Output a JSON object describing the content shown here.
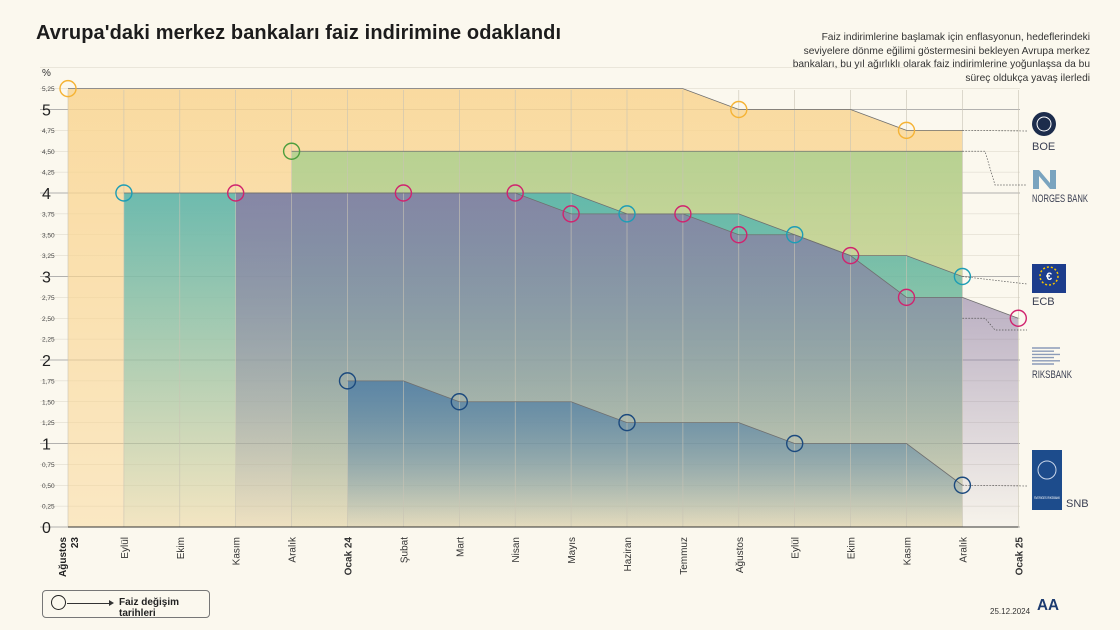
{
  "title": "Avrupa'daki merkez bankaları faiz indirimine odaklandı",
  "subtitle": "Faiz indirimlerine başlamak için enflasyonun, hedeflerindeki seviyelere dönme eğilimi göstermesini bekleyen Avrupa merkez bankaları, bu yıl ağırlıklı olarak faiz indirimlerine yoğunlaşsa da bu süreç oldukça yavaş ilerledi",
  "legend_label": "Faiz değişim tarihleri",
  "date": "25.12.2024",
  "logos": {
    "boe": "BOE",
    "norges": "NORGES BANK",
    "ecb": "ECB",
    "riksbank": "RIKSBANK",
    "snb": "SNB",
    "snb_emblem": "SVERIGES RIKSBANK",
    "aa": "AA"
  },
  "chart_data": {
    "type": "area",
    "ylabel": "%",
    "ylim": [
      0,
      5.5
    ],
    "ytick_major": [
      "0",
      "1",
      "2",
      "3",
      "4",
      "5"
    ],
    "ytick_minor": [
      "0,25",
      "0,50",
      "0,75",
      "1,25",
      "1,50",
      "1,75",
      "2,25",
      "2,50",
      "2,75",
      "3,25",
      "3,50",
      "3,75",
      "4,25",
      "4,50",
      "4,75",
      "5,25"
    ],
    "categories": [
      "Ağustos 23",
      "Eylül",
      "Ekim",
      "Kasım",
      "Aralık",
      "Ocak 24",
      "Şubat",
      "Mart",
      "Nisan",
      "Mayıs",
      "Haziran",
      "Temmuz",
      "Ağustos",
      "Eylül",
      "Ekim",
      "Kasım",
      "Aralık",
      "Ocak 25"
    ],
    "bold_categories": [
      "Ağustos 23",
      "Ocak 24",
      "Ocak 25"
    ],
    "grid": true,
    "series": [
      {
        "name": "BOE",
        "color": "#f5b335",
        "fill": "#f9d592",
        "steps": [
          [
            0,
            5.25
          ],
          [
            11,
            5.25
          ],
          [
            12,
            5.0
          ],
          [
            14,
            5.0
          ],
          [
            15,
            4.75
          ],
          [
            16,
            4.75
          ]
        ],
        "changes": [
          [
            0,
            5.25
          ],
          [
            12,
            5.0
          ],
          [
            15,
            4.75
          ]
        ]
      },
      {
        "name": "NORGES BANK",
        "color": "#4e9e3d",
        "fill": "#a9cf8e",
        "steps": [
          [
            4,
            4.5
          ],
          [
            16,
            4.5
          ]
        ],
        "changes": [
          [
            4,
            4.5
          ]
        ]
      },
      {
        "name": "ECB",
        "color": "#1d9db5",
        "fill": "#4fb3b0",
        "steps": [
          [
            1,
            4.0
          ],
          [
            9,
            4.0
          ],
          [
            10,
            3.75
          ],
          [
            12,
            3.75
          ],
          [
            13,
            3.5
          ],
          [
            14,
            3.25
          ],
          [
            15,
            3.25
          ],
          [
            16,
            3.0
          ]
        ],
        "changes": [
          [
            1,
            4.0
          ],
          [
            10,
            3.75
          ],
          [
            13,
            3.5
          ],
          [
            16,
            3.0
          ]
        ]
      },
      {
        "name": "RIKSBANK",
        "color": "#d0236e",
        "fill": "#8c7ba3",
        "steps": [
          [
            3,
            4.0
          ],
          [
            8,
            4.0
          ],
          [
            9,
            3.75
          ],
          [
            11,
            3.75
          ],
          [
            12,
            3.5
          ],
          [
            13,
            3.5
          ],
          [
            14,
            3.25
          ],
          [
            15,
            2.75
          ],
          [
            16,
            2.75
          ],
          [
            17,
            2.5
          ]
        ],
        "changes": [
          [
            3,
            4.0
          ],
          [
            6,
            4.0
          ],
          [
            8,
            4.0
          ],
          [
            9,
            3.75
          ],
          [
            11,
            3.75
          ],
          [
            12,
            3.5
          ],
          [
            14,
            3.25
          ],
          [
            15,
            2.75
          ],
          [
            17,
            2.5
          ]
        ]
      },
      {
        "name": "SNB",
        "color": "#1c4a7e",
        "fill": "#4e7da4",
        "steps": [
          [
            5,
            1.75
          ],
          [
            6,
            1.75
          ],
          [
            7,
            1.5
          ],
          [
            9,
            1.5
          ],
          [
            10,
            1.25
          ],
          [
            12,
            1.25
          ],
          [
            13,
            1.0
          ],
          [
            15,
            1.0
          ],
          [
            16,
            0.5
          ]
        ],
        "changes": [
          [
            5,
            1.75
          ],
          [
            7,
            1.5
          ],
          [
            10,
            1.25
          ],
          [
            13,
            1.0
          ],
          [
            16,
            0.5
          ]
        ]
      }
    ]
  }
}
